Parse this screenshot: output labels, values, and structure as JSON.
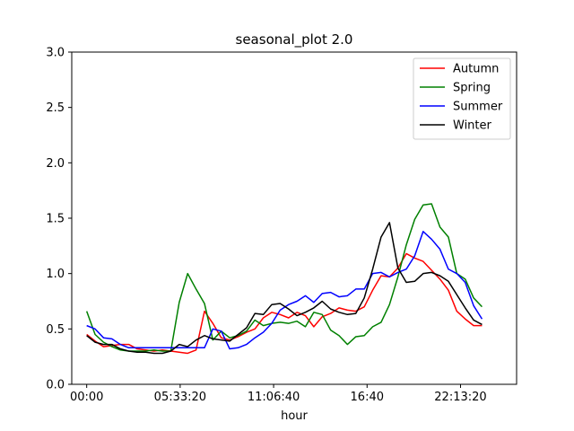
{
  "chart_data": {
    "type": "line",
    "title": "seasonal_plot 2.0",
    "xlabel": "hour",
    "ylabel": "",
    "xlim": [
      "-00:53:20",
      "25:33:20"
    ],
    "ylim": [
      0,
      3.0
    ],
    "x_unit": "hours",
    "xticks": [
      {
        "hours": 0,
        "label": "00:00"
      },
      {
        "hours": 5.5556,
        "label": "05:33:20"
      },
      {
        "hours": 11.1111,
        "label": "11:06:40"
      },
      {
        "hours": 16.6667,
        "label": "16:40"
      },
      {
        "hours": 22.2222,
        "label": "22:13:20"
      }
    ],
    "yticks": [
      "0.0",
      "0.5",
      "1.0",
      "1.5",
      "2.0",
      "2.5",
      "3.0"
    ],
    "grid": false,
    "legend_position": "top-right",
    "x": [
      0,
      0.5,
      1,
      1.5,
      2,
      2.5,
      3,
      3.5,
      4,
      4.5,
      5,
      5.5,
      6,
      6.5,
      7,
      7.5,
      8,
      8.5,
      9,
      9.5,
      10,
      10.5,
      11,
      11.5,
      12,
      12.5,
      13,
      13.5,
      14,
      14.5,
      15,
      15.5,
      16,
      16.5,
      17,
      17.5,
      18,
      18.5,
      19,
      19.5,
      20,
      20.5,
      21,
      21.5,
      22,
      22.5,
      23,
      23.5
    ],
    "series": [
      {
        "name": "Autumn",
        "color": "#ff0000",
        "values": [
          0.45,
          0.39,
          0.34,
          0.35,
          0.36,
          0.36,
          0.32,
          0.31,
          0.3,
          0.31,
          0.3,
          0.29,
          0.28,
          0.31,
          0.66,
          0.55,
          0.42,
          0.4,
          0.43,
          0.47,
          0.5,
          0.6,
          0.65,
          0.63,
          0.6,
          0.65,
          0.62,
          0.52,
          0.61,
          0.64,
          0.69,
          0.67,
          0.66,
          0.7,
          0.85,
          0.98,
          0.97,
          1.05,
          1.18,
          1.14,
          1.11,
          1.03,
          0.95,
          0.85,
          0.66,
          0.59,
          0.53,
          0.53
        ]
      },
      {
        "name": "Spring",
        "color": "#008000",
        "values": [
          0.66,
          0.45,
          0.38,
          0.34,
          0.31,
          0.3,
          0.3,
          0.3,
          0.31,
          0.3,
          0.3,
          0.74,
          1.0,
          0.86,
          0.73,
          0.4,
          0.48,
          0.42,
          0.44,
          0.48,
          0.58,
          0.53,
          0.55,
          0.56,
          0.55,
          0.57,
          0.52,
          0.65,
          0.63,
          0.49,
          0.44,
          0.36,
          0.43,
          0.44,
          0.52,
          0.56,
          0.72,
          0.97,
          1.26,
          1.49,
          1.62,
          1.63,
          1.42,
          1.33,
          1.0,
          0.95,
          0.78,
          0.7
        ]
      },
      {
        "name": "Summer",
        "color": "#0000ff",
        "values": [
          0.53,
          0.5,
          0.42,
          0.41,
          0.36,
          0.33,
          0.33,
          0.33,
          0.33,
          0.33,
          0.33,
          0.33,
          0.33,
          0.33,
          0.33,
          0.5,
          0.48,
          0.32,
          0.33,
          0.36,
          0.42,
          0.47,
          0.55,
          0.67,
          0.72,
          0.75,
          0.8,
          0.74,
          0.82,
          0.83,
          0.79,
          0.8,
          0.86,
          0.86,
          1.0,
          1.01,
          0.97,
          1.01,
          1.04,
          1.16,
          1.38,
          1.31,
          1.22,
          1.04,
          1.0,
          0.92,
          0.71,
          0.59
        ]
      },
      {
        "name": "Winter",
        "color": "#000000",
        "values": [
          0.44,
          0.38,
          0.36,
          0.36,
          0.32,
          0.3,
          0.29,
          0.29,
          0.28,
          0.28,
          0.3,
          0.36,
          0.34,
          0.4,
          0.44,
          0.41,
          0.4,
          0.39,
          0.45,
          0.51,
          0.64,
          0.63,
          0.72,
          0.73,
          0.68,
          0.62,
          0.65,
          0.69,
          0.75,
          0.68,
          0.65,
          0.63,
          0.64,
          0.78,
          1.04,
          1.33,
          1.46,
          1.05,
          0.92,
          0.93,
          1.0,
          1.01,
          0.98,
          0.93,
          0.81,
          0.69,
          0.58,
          0.54
        ]
      }
    ]
  }
}
